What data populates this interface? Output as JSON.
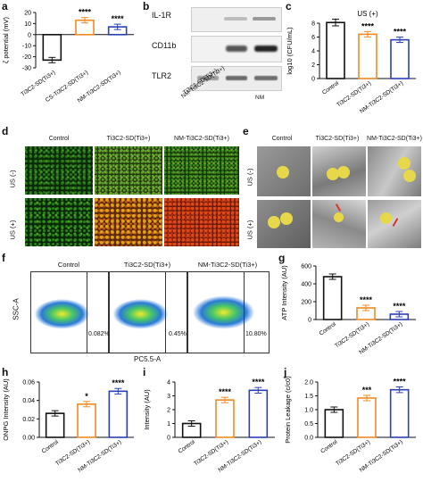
{
  "panels": {
    "a": "a",
    "b": "b",
    "c": "c",
    "d": "d",
    "e": "e",
    "f": "f",
    "g": "g",
    "h": "h",
    "i": "i",
    "j": "j"
  },
  "colors": {
    "black": "#111111",
    "orange": "#f08a24",
    "blue": "#2a3fb8",
    "yellow_bacteria": "#e6d84a",
    "arrow_red": "#d9342b"
  },
  "panel_b": {
    "bands": [
      "IL-1R",
      "CD11b",
      "TLR2"
    ],
    "lanes": [
      "Ti3C2-SD(Ti3+)",
      "NM-Ti3C2-SD(Ti3+)",
      "NM"
    ]
  },
  "panel_d": {
    "columns": [
      "Control",
      "Ti3C2-SD(Ti3+)",
      "NM-Ti3C2-SD(Ti3+)"
    ],
    "rows": [
      "US (-)",
      "US (+)"
    ]
  },
  "panel_e": {
    "columns": [
      "Control",
      "Ti3C2-SD(Ti3+)",
      "NM-Ti3C2-SD(Ti3+)"
    ],
    "rows": [
      "US (-)",
      "US (+)"
    ]
  },
  "panel_f": {
    "columns": [
      "Control",
      "Ti3C2-SD(Ti3+)",
      "NM-Ti3C2-SD(Ti3+)"
    ],
    "ylabel": "SSC-A",
    "xlabel": "PC5.5-A",
    "percentages": [
      "0.082%",
      "0.45%",
      "10.80%"
    ]
  },
  "chart_data": [
    {
      "id": "a",
      "type": "bar",
      "ylabel": "ζ potential (mV)",
      "categories": [
        "Ti3C2-SD(Ti3+)",
        "CS-Ti3C2-SD(Ti3+)",
        "NM-Ti3C2-SD(Ti3+)"
      ],
      "values": [
        -23,
        13,
        7
      ],
      "ylim": [
        -30,
        20
      ],
      "yticks": [
        "-30",
        "-20",
        "-10",
        "0",
        "10",
        "20"
      ],
      "significance": [
        "",
        "****",
        "****"
      ]
    },
    {
      "id": "c",
      "type": "bar",
      "title": "US (+)",
      "ylabel": "log10 (CFU/mL)",
      "categories": [
        "Control",
        "Ti3C2-SD(Ti3+)",
        "NM-Ti3C2-SD(Ti3+)"
      ],
      "values": [
        8.1,
        6.4,
        5.6
      ],
      "ylim": [
        0,
        8
      ],
      "yticks": [
        "0",
        "2",
        "4",
        "6",
        "8"
      ],
      "significance": [
        "",
        "****",
        "****"
      ]
    },
    {
      "id": "g",
      "type": "bar",
      "ylabel": "ATP Intensity (AU)",
      "categories": [
        "Control",
        "Ti3C2-SD(Ti3+)",
        "NM-Ti3C2-SD(Ti3+)"
      ],
      "values": [
        480,
        130,
        60
      ],
      "ylim": [
        0,
        600
      ],
      "yticks": [
        "0",
        "200",
        "400",
        "600"
      ],
      "significance": [
        "",
        "****",
        "****"
      ]
    },
    {
      "id": "h",
      "type": "bar",
      "ylabel": "ONPG Intensity (AU)",
      "categories": [
        "Control",
        "Ti3C2-SD(Ti3+)",
        "NM-Ti3C2-SD(Ti3+)"
      ],
      "values": [
        0.026,
        0.036,
        0.05
      ],
      "ylim": [
        0,
        0.06
      ],
      "yticks": [
        "0.00",
        "0.02",
        "0.04",
        "0.06"
      ],
      "significance": [
        "",
        "*",
        "****"
      ]
    },
    {
      "id": "i",
      "type": "bar",
      "ylabel": "Intensity (AU)",
      "categories": [
        "Control",
        "Ti3C2-SD(Ti3+)",
        "NM-Ti3C2-SD(Ti3+)"
      ],
      "values": [
        1.0,
        2.7,
        3.4
      ],
      "ylim": [
        0,
        4
      ],
      "yticks": [
        "0",
        "1",
        "2",
        "3",
        "4"
      ],
      "significance": [
        "",
        "****",
        "****"
      ]
    },
    {
      "id": "j",
      "type": "bar",
      "ylabel": "Protein Leakage (c/c0)",
      "categories": [
        "Control",
        "Ti3C2-SD(Ti3+)",
        "NM-Ti3C2-SD(Ti3+)"
      ],
      "values": [
        1.0,
        1.42,
        1.72
      ],
      "ylim": [
        0,
        2.0
      ],
      "yticks": [
        "0.0",
        "0.5",
        "1.0",
        "1.5",
        "2.0"
      ],
      "significance": [
        "",
        "***",
        "****"
      ]
    }
  ]
}
